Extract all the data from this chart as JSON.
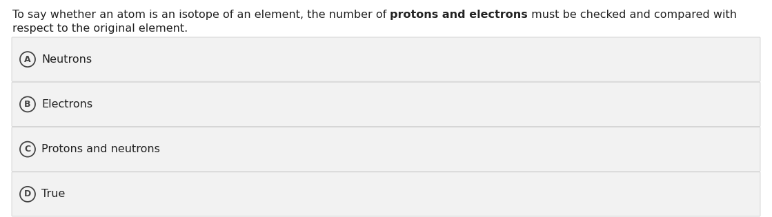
{
  "background_color": "#ffffff",
  "question_parts": [
    {
      "text": "To say whether an atom is an isotope of an element, the number of ",
      "bold": false
    },
    {
      "text": "protons and electrons",
      "bold": true
    },
    {
      "text": " must be checked and compared with",
      "bold": false
    }
  ],
  "question_line2": "respect to the original element.",
  "options": [
    {
      "label": "A",
      "text": "Neutrons"
    },
    {
      "label": "B",
      "text": "Electrons"
    },
    {
      "label": "C",
      "text": "Protons and neutrons"
    },
    {
      "label": "D",
      "text": "True"
    }
  ],
  "option_bg_color": "#f2f2f2",
  "option_border_color": "#d0d0d0",
  "circle_edge_color": "#444444",
  "text_color": "#222222",
  "font_size_question": 11.5,
  "font_size_option": 11.5,
  "fig_width": 11.19,
  "fig_height": 3.15
}
